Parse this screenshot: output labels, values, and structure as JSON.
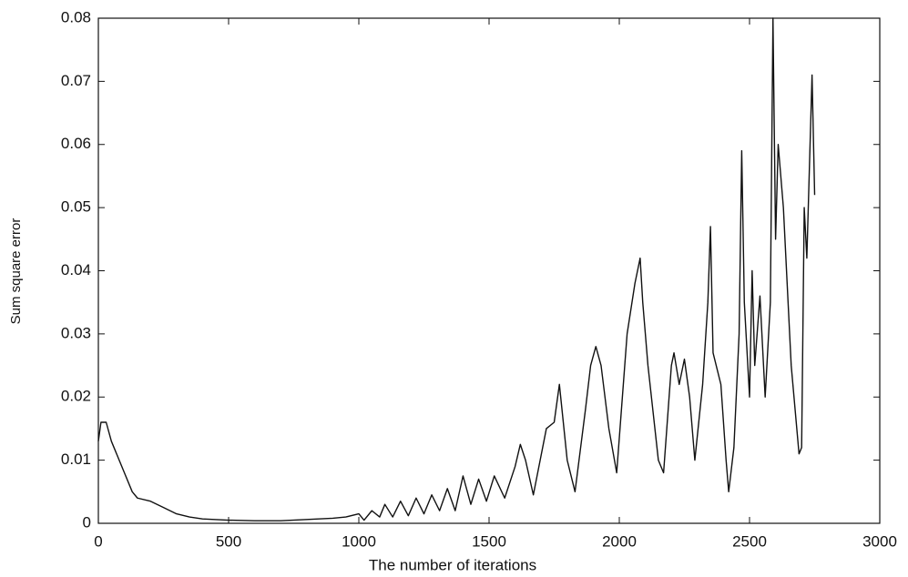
{
  "chart_data": {
    "type": "line",
    "xlabel": "The number of iterations",
    "ylabel": "Sum square error",
    "x": [
      0,
      10,
      30,
      50,
      80,
      100,
      130,
      150,
      200,
      250,
      300,
      350,
      400,
      500,
      600,
      700,
      800,
      900,
      950,
      1000,
      1020,
      1050,
      1080,
      1100,
      1130,
      1160,
      1190,
      1220,
      1250,
      1280,
      1310,
      1340,
      1370,
      1400,
      1430,
      1460,
      1490,
      1520,
      1560,
      1600,
      1620,
      1640,
      1670,
      1720,
      1750,
      1770,
      1800,
      1830,
      1870,
      1890,
      1910,
      1930,
      1960,
      1990,
      2030,
      2060,
      2080,
      2090,
      2110,
      2150,
      2170,
      2200,
      2210,
      2230,
      2250,
      2270,
      2290,
      2320,
      2340,
      2350,
      2360,
      2390,
      2410,
      2420,
      2440,
      2460,
      2470,
      2480,
      2500,
      2510,
      2520,
      2540,
      2560,
      2580,
      2590,
      2600,
      2610,
      2630,
      2660,
      2690,
      2700,
      2710,
      2720,
      2740,
      2750
    ],
    "series": [
      {
        "name": "Sum square error",
        "color": "#111111",
        "values": [
          0.013,
          0.016,
          0.016,
          0.013,
          0.01,
          0.008,
          0.005,
          0.004,
          0.0035,
          0.0025,
          0.0015,
          0.001,
          0.0007,
          0.0005,
          0.0004,
          0.0004,
          0.0006,
          0.0008,
          0.001,
          0.0015,
          0.0005,
          0.002,
          0.001,
          0.003,
          0.001,
          0.0035,
          0.0012,
          0.004,
          0.0015,
          0.0045,
          0.002,
          0.0055,
          0.002,
          0.0075,
          0.003,
          0.007,
          0.0035,
          0.0075,
          0.004,
          0.009,
          0.0125,
          0.01,
          0.0045,
          0.015,
          0.016,
          0.022,
          0.01,
          0.005,
          0.018,
          0.025,
          0.028,
          0.025,
          0.015,
          0.008,
          0.03,
          0.038,
          0.042,
          0.035,
          0.025,
          0.01,
          0.008,
          0.025,
          0.027,
          0.022,
          0.026,
          0.02,
          0.01,
          0.022,
          0.035,
          0.047,
          0.027,
          0.022,
          0.01,
          0.005,
          0.012,
          0.03,
          0.059,
          0.035,
          0.02,
          0.04,
          0.025,
          0.036,
          0.02,
          0.035,
          0.08,
          0.045,
          0.06,
          0.05,
          0.025,
          0.011,
          0.012,
          0.05,
          0.042,
          0.071,
          0.052
        ]
      }
    ],
    "xlim": [
      0,
      3000
    ],
    "xticks": [
      0,
      500,
      1000,
      1500,
      2000,
      2500,
      3000
    ],
    "ylim": [
      0,
      0.08
    ],
    "yticks": [
      0,
      0.01,
      0.02,
      0.03,
      0.04,
      0.05,
      0.06,
      0.07,
      0.08
    ]
  }
}
